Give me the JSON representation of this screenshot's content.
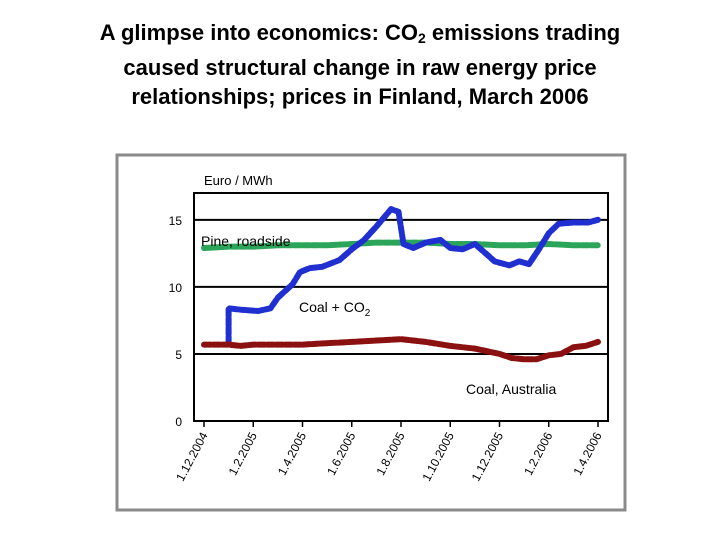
{
  "title": {
    "part1": "A glimpse into economics: CO",
    "sub": "2",
    "part2": " emissions trading",
    "line2": "caused structural change in raw energy price",
    "line3": "relationships; prices in Finland, March 2006"
  },
  "chart_data": {
    "type": "line",
    "ylabel": "Euro / MWh",
    "ylim": [
      0,
      17
    ],
    "yticks": [
      0,
      5,
      10,
      15
    ],
    "grid": true,
    "xlim": [
      0,
      16
    ],
    "xticks": [
      {
        "label": "1.12.2004",
        "x": 0
      },
      {
        "label": "1.2.2005",
        "x": 2
      },
      {
        "label": "1.4.2005",
        "x": 4
      },
      {
        "label": "1.6.2005",
        "x": 6
      },
      {
        "label": "1.8.2005",
        "x": 8
      },
      {
        "label": "1.10.2005",
        "x": 10
      },
      {
        "label": "1.12.2005",
        "x": 12
      },
      {
        "label": "1.2.2006",
        "x": 14
      },
      {
        "label": "1.4.2006",
        "x": 16
      }
    ],
    "series": [
      {
        "name": "Pine, roadside",
        "color": "#2aa55a",
        "points": [
          [
            0,
            12.9
          ],
          [
            1,
            13.0
          ],
          [
            2,
            13.0
          ],
          [
            3,
            13.1
          ],
          [
            4,
            13.1
          ],
          [
            5,
            13.1
          ],
          [
            6,
            13.2
          ],
          [
            7,
            13.3
          ],
          [
            8,
            13.3
          ],
          [
            9,
            13.3
          ],
          [
            10,
            13.2
          ],
          [
            11,
            13.2
          ],
          [
            12,
            13.1
          ],
          [
            13,
            13.1
          ],
          [
            14,
            13.2
          ],
          [
            15,
            13.1
          ],
          [
            16,
            13.1
          ]
        ]
      },
      {
        "name": "Coal + CO2",
        "color": "#1f2fd0",
        "points": [
          [
            1,
            5.8
          ],
          [
            1.0,
            8.4
          ],
          [
            1.5,
            8.3
          ],
          [
            2.2,
            8.2
          ],
          [
            2.7,
            8.4
          ],
          [
            3.0,
            9.2
          ],
          [
            3.6,
            10.2
          ],
          [
            3.9,
            11.1
          ],
          [
            4.3,
            11.4
          ],
          [
            4.8,
            11.5
          ],
          [
            5.5,
            12.0
          ],
          [
            6.0,
            12.8
          ],
          [
            6.5,
            13.5
          ],
          [
            7.0,
            14.5
          ],
          [
            7.6,
            15.8
          ],
          [
            7.9,
            15.6
          ],
          [
            8.1,
            13.2
          ],
          [
            8.5,
            12.9
          ],
          [
            9.0,
            13.3
          ],
          [
            9.6,
            13.5
          ],
          [
            10.0,
            12.9
          ],
          [
            10.5,
            12.8
          ],
          [
            11.0,
            13.2
          ],
          [
            11.5,
            12.4
          ],
          [
            11.8,
            11.9
          ],
          [
            12.4,
            11.6
          ],
          [
            12.8,
            11.9
          ],
          [
            13.2,
            11.7
          ],
          [
            13.6,
            12.8
          ],
          [
            14.0,
            14.0
          ],
          [
            14.4,
            14.7
          ],
          [
            15.0,
            14.8
          ],
          [
            15.6,
            14.8
          ],
          [
            16.0,
            15.0
          ]
        ]
      },
      {
        "name": "Coal, Australia",
        "color": "#8b1010",
        "points": [
          [
            0,
            5.7
          ],
          [
            1,
            5.7
          ],
          [
            1.5,
            5.6
          ],
          [
            2,
            5.7
          ],
          [
            3,
            5.7
          ],
          [
            4,
            5.7
          ],
          [
            5,
            5.8
          ],
          [
            6,
            5.9
          ],
          [
            7,
            6.0
          ],
          [
            8,
            6.1
          ],
          [
            9,
            5.9
          ],
          [
            10,
            5.6
          ],
          [
            11,
            5.4
          ],
          [
            12,
            5.0
          ],
          [
            12.5,
            4.7
          ],
          [
            13,
            4.6
          ],
          [
            13.5,
            4.6
          ],
          [
            14,
            4.9
          ],
          [
            14.5,
            5.0
          ],
          [
            15,
            5.5
          ],
          [
            15.5,
            5.6
          ],
          [
            16,
            5.9
          ]
        ]
      }
    ],
    "annotations": [
      {
        "text": "Pine, roadside"
      },
      {
        "text": "Coal + CO",
        "sub": "2"
      },
      {
        "text": "Coal, Australia"
      }
    ]
  }
}
